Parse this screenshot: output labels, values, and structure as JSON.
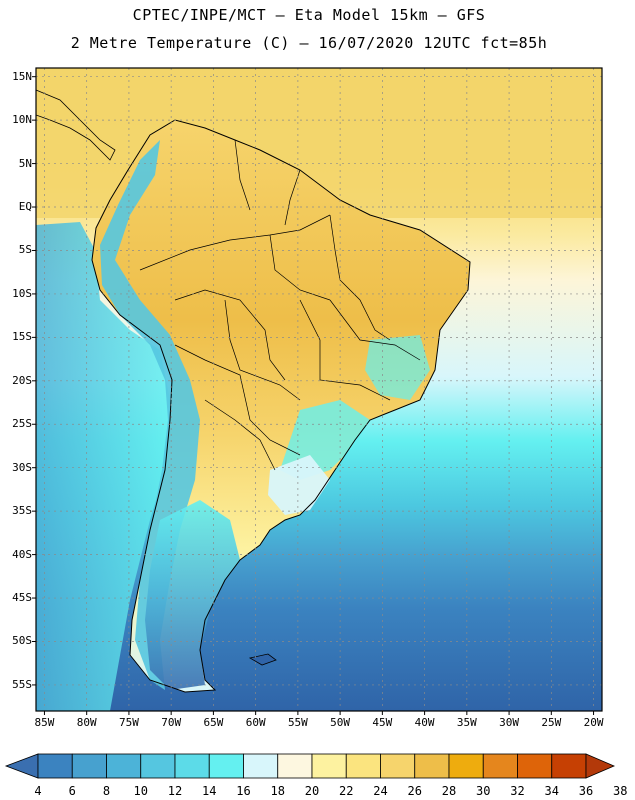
{
  "header": {
    "line1": "CPTEC/INPE/MCT –  Eta Model 15km – GFS",
    "line2": "2 Metre Temperature (C) – 16/07/2020 12UTC fct=85h"
  },
  "axes": {
    "lat_labels": [
      "15N",
      "10N",
      "5N",
      "EQ",
      "5S",
      "10S",
      "15S",
      "20S",
      "25S",
      "30S",
      "35S",
      "40S",
      "45S",
      "50S",
      "55S"
    ],
    "lon_labels": [
      "85W",
      "80W",
      "75W",
      "70W",
      "65W",
      "60W",
      "55W",
      "50W",
      "45W",
      "40W",
      "35W",
      "30W",
      "25W",
      "20W"
    ]
  },
  "map_extent": {
    "lon_min": -86,
    "lon_max": -19,
    "lat_min": -58,
    "lat_max": 16
  },
  "colorbar": {
    "labels": [
      "4",
      "6",
      "8",
      "10",
      "12",
      "14",
      "16",
      "18",
      "20",
      "22",
      "24",
      "26",
      "28",
      "30",
      "32",
      "34",
      "36",
      "38"
    ],
    "colors": [
      "#3a6fb0",
      "#3b83c0",
      "#47a1cf",
      "#4cb3d8",
      "#55c6e0",
      "#5cdbe8",
      "#64f0f0",
      "#d8f6fb",
      "#fdf7e0",
      "#fdf2a0",
      "#fbe47f",
      "#f6d46c",
      "#eebe49",
      "#eeac0e",
      "#e5861d",
      "#de6409",
      "#c64003",
      "#b3390a"
    ]
  },
  "legend_colors": {
    "ocean_cold": "#2f64a8",
    "ocean_mid": "#4cb3d8",
    "ocean_warm": "#f3d56a",
    "land_warm": "#f6d46c",
    "land_hot": "#eebe49",
    "andes": "#55c6e0"
  }
}
